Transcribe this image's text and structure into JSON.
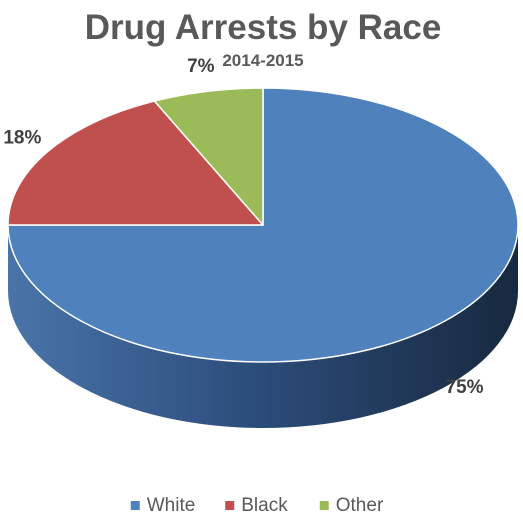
{
  "chart_data": {
    "type": "pie",
    "title": "Drug Arrests by Race",
    "subtitle": "2014-2015",
    "categories": [
      "White",
      "Black",
      "Other"
    ],
    "values": [
      75,
      18,
      7
    ],
    "value_labels": [
      "75%",
      "18%",
      "7%"
    ],
    "colors": [
      "#4f81bd",
      "#c0504d",
      "#9bbb59"
    ],
    "style": "3d",
    "legend_position": "bottom"
  }
}
